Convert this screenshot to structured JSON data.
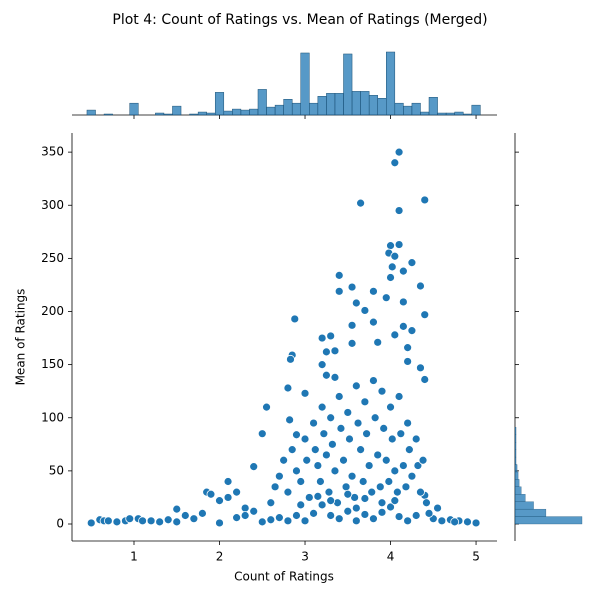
{
  "chart_data": {
    "type": "scatter",
    "title": "Plot 4: Count of Ratings vs. Mean of Ratings (Merged)",
    "xlabel": "Count of Ratings",
    "ylabel": "Mean of Ratings",
    "color": "#1f77b4",
    "xlim": [
      0.275,
      5.245
    ],
    "ylim": [
      -16,
      368
    ],
    "xticks": [
      1,
      2,
      3,
      4,
      5
    ],
    "yticks": [
      0,
      50,
      100,
      150,
      200,
      250,
      300,
      350
    ],
    "x": [
      4.1,
      4.05,
      4.4,
      3.65,
      4.1,
      4.1,
      4.0,
      3.98,
      4.05,
      4.25,
      4.02,
      3.4,
      4.0,
      4.15,
      4.35,
      3.55,
      3.4,
      3.8,
      3.95,
      4.15,
      3.6,
      3.7,
      4.4,
      2.88,
      3.8,
      3.55,
      4.15,
      4.25,
      3.3,
      3.2,
      4.05,
      3.85,
      3.55,
      4.2,
      3.35,
      3.25,
      2.85,
      2.83,
      4.2,
      3.2,
      4.35,
      3.25,
      2.8,
      4.4,
      3.35,
      2.55,
      3.0,
      2.82,
      2.5,
      2.9,
      2.4,
      2.1,
      0.5,
      0.6,
      0.65,
      0.7,
      0.8,
      0.9,
      0.95,
      1.05,
      1.1,
      1.2,
      1.3,
      1.4,
      1.5,
      1.5,
      1.6,
      1.7,
      1.8,
      1.85,
      1.9,
      2.0,
      2.0,
      2.1,
      2.2,
      2.3,
      2.5,
      4.6,
      4.7,
      4.8,
      5.0,
      4.5,
      4.55,
      4.4,
      4.45,
      4.9,
      4.75,
      2.6,
      2.65,
      2.7,
      2.75,
      2.8,
      2.85,
      2.9,
      2.95,
      3.0,
      3.02,
      3.05,
      3.1,
      3.12,
      3.15,
      3.18,
      3.2,
      3.22,
      3.25,
      3.28,
      3.3,
      3.32,
      3.35,
      3.38,
      3.4,
      3.42,
      3.45,
      3.48,
      3.5,
      3.52,
      3.55,
      3.58,
      3.6,
      3.62,
      3.65,
      3.68,
      3.7,
      3.72,
      3.75,
      3.78,
      3.8,
      3.82,
      3.85,
      3.88,
      3.9,
      3.92,
      3.95,
      3.98,
      4.0,
      4.02,
      4.05,
      4.08,
      4.1,
      4.12,
      4.15,
      4.18,
      4.2,
      4.22,
      4.25,
      4.3,
      4.32,
      4.35,
      4.38,
      4.42,
      3.1,
      3.3,
      3.5,
      3.7,
      3.9,
      4.1,
      2.9,
      2.7,
      3.2,
      3.6,
      4.0,
      3.4,
      3.8,
      4.3,
      3.0,
      2.6,
      2.8,
      3.6,
      4.2,
      2.3,
      2.4,
      2.2,
      3.5,
      3.3,
      3.7,
      3.9,
      4.05,
      3.15,
      2.95
    ],
    "y": [
      350,
      340,
      305,
      302,
      295,
      263,
      262,
      255,
      252,
      246,
      242,
      234,
      232,
      238,
      224,
      223,
      219,
      219,
      213,
      209,
      208,
      201,
      197,
      193,
      190,
      187,
      186,
      182,
      177,
      175,
      178,
      171,
      170,
      166,
      163,
      162,
      159,
      155,
      153,
      150,
      147,
      140,
      128,
      136,
      138,
      110,
      123,
      98,
      85,
      84,
      54,
      40,
      1,
      4,
      3,
      3,
      2,
      3,
      5,
      5,
      3,
      3,
      2,
      4,
      14,
      2,
      8,
      5,
      10,
      30,
      28,
      22,
      1,
      25,
      30,
      15,
      2,
      3,
      4,
      3,
      1,
      5,
      15,
      27,
      10,
      2,
      2,
      20,
      35,
      45,
      60,
      30,
      70,
      50,
      40,
      80,
      60,
      25,
      95,
      70,
      55,
      40,
      110,
      85,
      65,
      30,
      100,
      75,
      50,
      20,
      120,
      90,
      60,
      35,
      105,
      80,
      45,
      25,
      130,
      95,
      70,
      40,
      115,
      85,
      55,
      30,
      135,
      100,
      65,
      35,
      125,
      90,
      60,
      40,
      110,
      80,
      50,
      30,
      120,
      85,
      55,
      35,
      95,
      70,
      45,
      80,
      55,
      30,
      60,
      20,
      10,
      8,
      12,
      9,
      11,
      7,
      8,
      6,
      18,
      15,
      16,
      5,
      5,
      8,
      3,
      4,
      3,
      3,
      3,
      8,
      12,
      6,
      28,
      22,
      24,
      20,
      22,
      26,
      18
    ],
    "marginal_x": {
      "bins": [
        0.45,
        0.55,
        0.65,
        0.75,
        0.85,
        0.95,
        1.05,
        1.15,
        1.25,
        1.35,
        1.45,
        1.55,
        1.65,
        1.75,
        1.85,
        1.95,
        2.05,
        2.15,
        2.25,
        2.35,
        2.45,
        2.55,
        2.65,
        2.75,
        2.85,
        2.95,
        3.05,
        3.15,
        3.25,
        3.35,
        3.45,
        3.55,
        3.65,
        3.75,
        3.85,
        3.95,
        4.05,
        4.15,
        4.25,
        4.35,
        4.45,
        4.55,
        4.65,
        4.75,
        4.85,
        4.95,
        5.05
      ],
      "counts": [
        5,
        0,
        1,
        0,
        0,
        12,
        0,
        0,
        2,
        1,
        9,
        0,
        1,
        3,
        2,
        23,
        4,
        6,
        5,
        6,
        26,
        8,
        10,
        16,
        12,
        63,
        12,
        19,
        22,
        22,
        62,
        24,
        24,
        20,
        17,
        64,
        12,
        9,
        12,
        3,
        18,
        2,
        2,
        3,
        1,
        10
      ]
    },
    "marginal_y": {
      "bins": [
        0,
        7,
        14,
        21,
        28,
        35,
        42,
        49,
        56,
        63,
        70,
        77,
        84,
        91,
        98,
        105,
        112,
        119,
        126,
        133,
        140,
        147,
        154,
        161,
        168,
        175,
        182,
        189,
        196,
        203,
        210,
        217,
        224,
        231,
        238,
        245,
        252,
        259,
        266,
        273,
        280,
        287,
        294,
        301,
        308,
        315,
        322,
        329,
        336,
        343,
        350
      ],
      "counts": [
        65,
        30,
        18,
        10,
        6,
        4,
        3,
        2,
        1,
        1,
        1,
        1,
        1,
        0,
        0,
        0,
        0,
        0,
        0,
        0,
        0,
        0,
        0,
        0,
        0,
        0,
        0,
        0,
        0,
        0,
        0,
        0,
        0,
        0,
        0,
        0,
        0,
        0,
        0,
        0,
        0,
        0,
        0,
        0,
        0,
        0,
        0,
        0,
        0,
        0
      ]
    }
  }
}
